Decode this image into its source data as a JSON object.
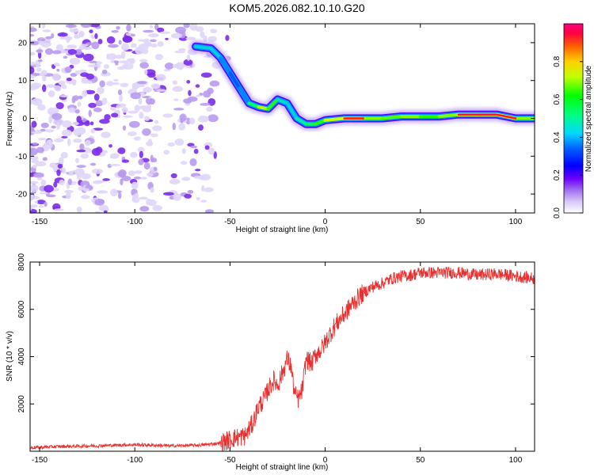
{
  "title": "KOM5.2026.082.10.10.G20",
  "chart_data": [
    {
      "type": "heatmap",
      "name": "spectrogram",
      "xlabel": "Height of straight line (km)",
      "ylabel": "Frequency (Hz)",
      "xlim": [
        -155,
        110
      ],
      "ylim": [
        -25,
        25
      ],
      "xticks": [
        -150,
        -100,
        -50,
        0,
        50,
        100
      ],
      "yticks": [
        -20,
        -10,
        0,
        10,
        20
      ],
      "colorbar": {
        "label": "Normalized spectral amplitude",
        "range": [
          0,
          1
        ],
        "ticks": [
          0.0,
          0.2,
          0.4,
          0.6,
          0.8
        ],
        "colormap": [
          "#ffffff",
          "#d8c8f8",
          "#8040e0",
          "#6000ff",
          "#0000ff",
          "#00c0ff",
          "#00ff80",
          "#00ff00",
          "#c0ff00",
          "#ffff00",
          "#ff8000",
          "#ff0000"
        ]
      },
      "noise_region_x": [
        -155,
        -55
      ],
      "signal_track": {
        "x": [
          -68,
          -60,
          -55,
          -50,
          -45,
          -40,
          -35,
          -30,
          -25,
          -20,
          -15,
          -10,
          -5,
          0,
          10,
          20,
          30,
          40,
          50,
          60,
          70,
          80,
          90,
          100,
          110
        ],
        "freq": [
          19,
          18.5,
          16,
          12,
          8,
          4,
          3,
          2.5,
          5,
          4,
          0,
          -1.5,
          -1.5,
          -0.5,
          0,
          0,
          0,
          0.5,
          0.5,
          0.5,
          1,
          1,
          1,
          0,
          0
        ],
        "amplitude": [
          0.5,
          0.55,
          0.5,
          0.45,
          0.45,
          0.5,
          0.75,
          0.85,
          0.6,
          0.5,
          0.55,
          0.6,
          0.7,
          0.75,
          0.9,
          0.85,
          0.7,
          0.8,
          0.75,
          0.7,
          0.85,
          0.95,
          0.9,
          0.85,
          0.7
        ]
      }
    },
    {
      "type": "line",
      "name": "snr",
      "xlabel": "Height of straight line (km)",
      "ylabel": "SNR (10 * v/v)",
      "xlim": [
        -155,
        110
      ],
      "ylim": [
        0,
        8000
      ],
      "xticks": [
        -150,
        -100,
        -50,
        0,
        50,
        100
      ],
      "yticks": [
        2000,
        4000,
        6000,
        8000
      ],
      "color": "#e83030",
      "series": [
        {
          "name": "SNR",
          "x": [
            -155,
            -140,
            -120,
            -100,
            -80,
            -65,
            -55,
            -48,
            -42,
            -38,
            -35,
            -32,
            -30,
            -27,
            -25,
            -22,
            -20,
            -18,
            -16,
            -14,
            -12,
            -10,
            -7,
            -5,
            -2,
            0,
            5,
            10,
            15,
            20,
            25,
            30,
            35,
            40,
            45,
            50,
            60,
            70,
            80,
            90,
            100,
            110
          ],
          "values": [
            150,
            200,
            230,
            280,
            230,
            260,
            350,
            550,
            650,
            1200,
            1900,
            2200,
            2600,
            3000,
            2800,
            3400,
            3900,
            3600,
            2400,
            2200,
            2600,
            3900,
            3700,
            4100,
            4300,
            4600,
            5300,
            5800,
            6300,
            6700,
            6950,
            7100,
            7300,
            7400,
            7450,
            7550,
            7550,
            7550,
            7450,
            7500,
            7400,
            7300
          ]
        }
      ]
    }
  ]
}
